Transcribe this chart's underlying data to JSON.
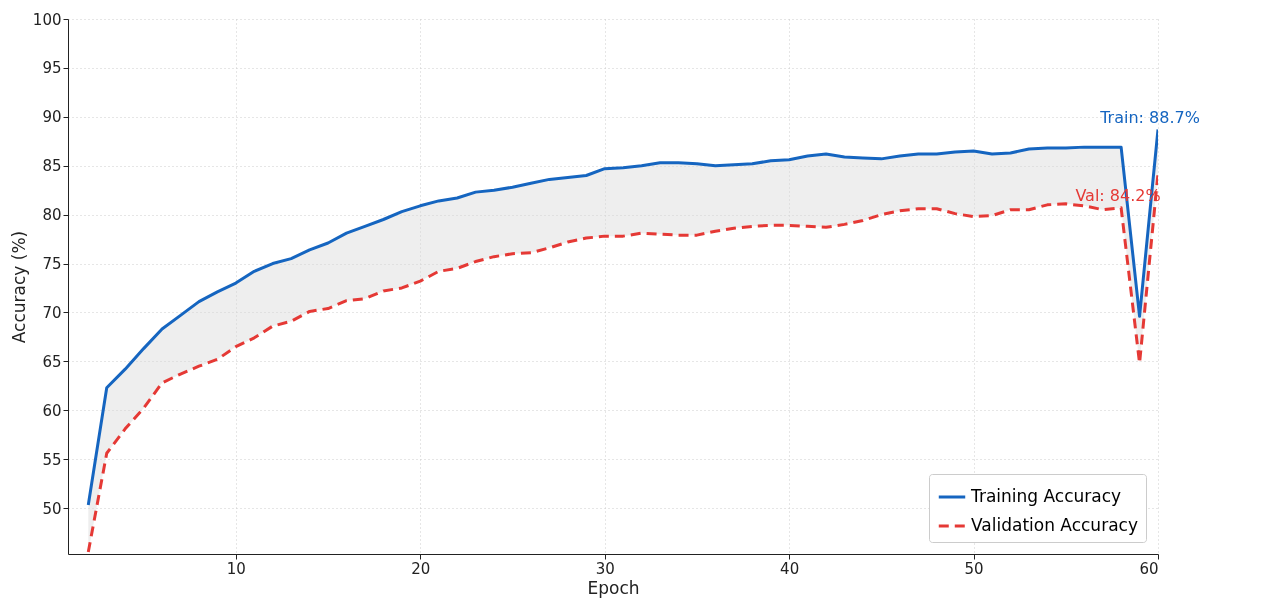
{
  "chart_data": {
    "type": "line",
    "xlabel": "Epoch",
    "ylabel": "Accuracy (%)",
    "x": [
      2,
      3,
      4,
      5,
      6,
      7,
      8,
      9,
      10,
      11,
      12,
      13,
      14,
      15,
      16,
      17,
      18,
      19,
      20,
      21,
      22,
      23,
      24,
      25,
      26,
      27,
      28,
      29,
      30,
      31,
      32,
      33,
      34,
      35,
      36,
      37,
      38,
      39,
      40,
      41,
      42,
      43,
      44,
      45,
      46,
      47,
      48,
      49,
      50,
      51,
      52,
      53,
      54,
      55,
      56,
      57,
      58,
      59,
      60
    ],
    "series": [
      {
        "name": "Training Accuracy",
        "color": "#1565c0",
        "line_style": "solid",
        "values": [
          50.3,
          62.3,
          64.2,
          66.3,
          68.3,
          69.7,
          71.1,
          72.1,
          73.0,
          74.2,
          75.0,
          75.5,
          76.4,
          77.1,
          78.1,
          78.8,
          79.5,
          80.3,
          80.9,
          81.4,
          81.7,
          82.3,
          82.5,
          82.8,
          83.2,
          83.6,
          83.8,
          84.0,
          84.7,
          84.8,
          85.0,
          85.3,
          85.3,
          85.2,
          85.0,
          85.1,
          85.2,
          85.5,
          85.6,
          86.0,
          86.2,
          85.9,
          85.8,
          85.7,
          86.0,
          86.2,
          86.2,
          86.4,
          86.5,
          86.2,
          86.3,
          86.7,
          86.8,
          86.8,
          86.9,
          86.9,
          86.9,
          69.6,
          88.7
        ],
        "lower": [
          45.5,
          55.6,
          58.1,
          60.2,
          62.8,
          63.7,
          64.5,
          65.2,
          66.5,
          67.4,
          68.6,
          69.1,
          70.1,
          70.4,
          71.2,
          71.4,
          72.2,
          72.5,
          73.2,
          74.2,
          74.5,
          75.2,
          75.7,
          76.0,
          76.1,
          76.6,
          77.2,
          77.6,
          77.8,
          77.8,
          78.1,
          78.0,
          77.9,
          77.9,
          78.3,
          78.6,
          78.8,
          78.9,
          78.9,
          78.8,
          78.7,
          79.0,
          79.4,
          80.0,
          80.4,
          80.6,
          80.6,
          80.1,
          79.8,
          79.9,
          80.5,
          80.5,
          81.0,
          81.1,
          80.9,
          80.5,
          80.7,
          64.8,
          84.2
        ],
        "upper": [
          50.3,
          62.3,
          64.2,
          66.3,
          68.3,
          69.7,
          71.1,
          72.1,
          73.0,
          74.2,
          75.0,
          75.5,
          76.4,
          77.1,
          78.1,
          78.8,
          79.5,
          80.3,
          80.9,
          81.4,
          81.7,
          82.3,
          82.5,
          82.8,
          83.2,
          83.6,
          83.8,
          84.0,
          84.7,
          84.8,
          85.0,
          85.3,
          85.3,
          85.2,
          85.0,
          85.1,
          85.2,
          85.5,
          85.6,
          86.0,
          86.2,
          85.9,
          85.8,
          85.7,
          86.0,
          86.2,
          86.2,
          86.4,
          86.5,
          86.2,
          86.3,
          86.7,
          86.8,
          86.8,
          86.9,
          86.9,
          86.9,
          69.6,
          88.7
        ]
      },
      {
        "name": "Validation Accuracy",
        "color": "#e53935",
        "line_style": "dashed",
        "values": [
          45.5,
          55.6,
          58.1,
          60.2,
          62.8,
          63.7,
          64.5,
          65.2,
          66.5,
          67.4,
          68.6,
          69.1,
          70.1,
          70.4,
          71.2,
          71.4,
          72.2,
          72.5,
          73.2,
          74.2,
          74.5,
          75.2,
          75.7,
          76.0,
          76.1,
          76.6,
          77.2,
          77.6,
          77.8,
          77.8,
          78.1,
          78.0,
          77.9,
          77.9,
          78.3,
          78.6,
          78.8,
          78.9,
          78.9,
          78.8,
          78.7,
          79.0,
          79.4,
          80.0,
          80.4,
          80.6,
          80.6,
          80.1,
          79.8,
          79.9,
          80.5,
          80.5,
          81.0,
          81.1,
          80.9,
          80.5,
          80.7,
          64.8,
          84.2
        ]
      }
    ],
    "annotations": [
      {
        "text": "Train: 88.7%",
        "x": 60,
        "y": 88.7
      },
      {
        "text": "Val: 84.2%",
        "x": 60,
        "y": 84.2
      }
    ],
    "xlim": [
      0.9,
      60
    ],
    "xticks": [
      10,
      20,
      30,
      40,
      50,
      60
    ],
    "ylim": [
      45.3,
      100
    ],
    "yticks": [
      50,
      55,
      60,
      65,
      70,
      75,
      80,
      85,
      90,
      95,
      100
    ],
    "grid": true,
    "legend": "bottom right",
    "marker": "none"
  }
}
